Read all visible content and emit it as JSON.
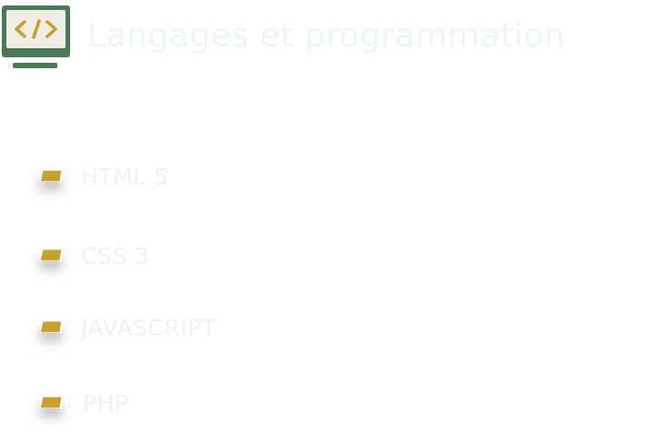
{
  "header": {
    "title": "Langages et programmation",
    "icon": "code-monitor-icon"
  },
  "colors": {
    "accent_green": "#4a7a55",
    "accent_gold": "#c9a02e",
    "screen_bg": "#efede6",
    "title_text": "#eef6f2",
    "item_text": "#f1f1f1"
  },
  "languages": [
    {
      "label": "HTML 5"
    },
    {
      "label": "CSS 3"
    },
    {
      "label": "JAVASCRIPT"
    },
    {
      "label": "PHP"
    }
  ]
}
